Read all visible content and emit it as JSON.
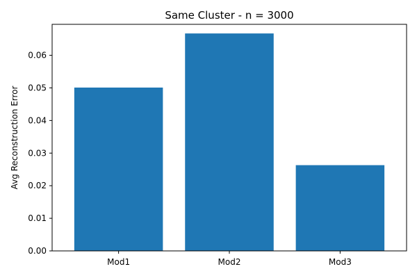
{
  "chart_data": {
    "type": "bar",
    "title": "Same Cluster - n = 3000",
    "xlabel": "",
    "ylabel": "Avg Reconstruction Error",
    "categories": [
      "Mod1",
      "Mod2",
      "Mod3"
    ],
    "values": [
      0.0501,
      0.0667,
      0.0263
    ],
    "ylim": [
      0,
      0.0695
    ],
    "yticks": [
      0.0,
      0.01,
      0.02,
      0.03,
      0.04,
      0.05,
      0.06
    ],
    "ytick_labels": [
      "0.00",
      "0.01",
      "0.02",
      "0.03",
      "0.04",
      "0.05",
      "0.06"
    ],
    "bar_color": "#1f77b4",
    "grid": false,
    "legend": "none"
  }
}
